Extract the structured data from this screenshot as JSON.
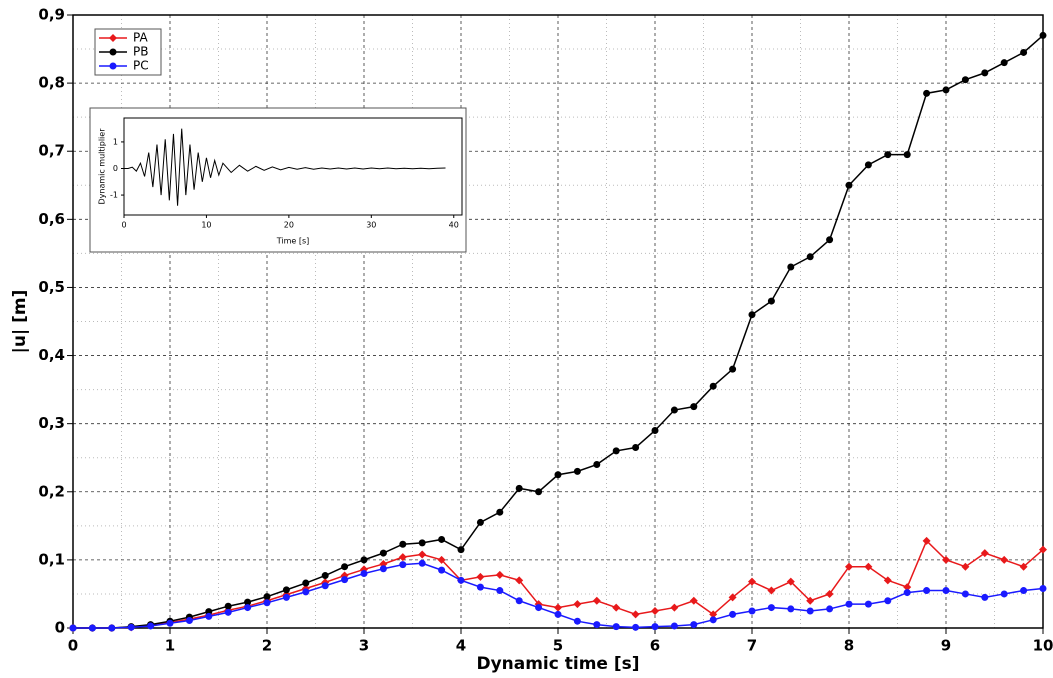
{
  "chart_data": [
    {
      "type": "line",
      "x_label": "Dynamic time [s]",
      "y_label": "|u| [m]",
      "xlim": [
        0,
        10
      ],
      "ylim": [
        0,
        0.9
      ],
      "xticks": [
        0,
        1,
        2,
        3,
        4,
        5,
        6,
        7,
        8,
        9,
        10
      ],
      "yticks": [
        0,
        {
          "value": 0.1,
          "label": "0,1"
        },
        {
          "value": 0.2,
          "label": "0,2"
        },
        {
          "value": 0.3,
          "label": "0,3"
        },
        {
          "value": 0.4,
          "label": "0,4"
        },
        {
          "value": 0.5,
          "label": "0,5"
        },
        {
          "value": 0.6,
          "label": "0,6"
        },
        {
          "value": 0.7,
          "label": "0,7"
        },
        {
          "value": 0.8,
          "label": "0,8"
        },
        {
          "value": 0.9,
          "label": "0,9"
        }
      ],
      "grid": true,
      "minor_grid": true,
      "markers": true,
      "legend": "upper left",
      "x": [
        0,
        0.2,
        0.4,
        0.6,
        0.8,
        1,
        1.2,
        1.4,
        1.6,
        1.8,
        2,
        2.2,
        2.4,
        2.6,
        2.8,
        3,
        3.2,
        3.4,
        3.6,
        3.8,
        4,
        4.2,
        4.4,
        4.6,
        4.8,
        5,
        5.2,
        5.4,
        5.6,
        5.8,
        6,
        6.2,
        6.4,
        6.6,
        6.8,
        7,
        7.2,
        7.4,
        7.6,
        7.8,
        8,
        8.2,
        8.4,
        8.6,
        8.8,
        9,
        9.2,
        9.4,
        9.6,
        9.8,
        10
      ],
      "series": [
        {
          "name": "PA",
          "color": "#e8191b",
          "marker": "diamond",
          "values": [
            0,
            0,
            0,
            0.001,
            0.004,
            0.008,
            0.013,
            0.019,
            0.026,
            0.032,
            0.04,
            0.049,
            0.058,
            0.067,
            0.077,
            0.086,
            0.094,
            0.104,
            0.108,
            0.1,
            0.07,
            0.075,
            0.078,
            0.07,
            0.035,
            0.03,
            0.035,
            0.04,
            0.03,
            0.02,
            0.025,
            0.03,
            0.04,
            0.02,
            0.045,
            0.068,
            0.055,
            0.068,
            0.04,
            0.05,
            0.09,
            0.09,
            0.07,
            0.06,
            0.128,
            0.1,
            0.09,
            0.11,
            0.1,
            0.09,
            0.115
          ]
        },
        {
          "name": "PB",
          "color": "#000000",
          "marker": "circle",
          "values": [
            0,
            0,
            0,
            0.002,
            0.005,
            0.01,
            0.016,
            0.024,
            0.032,
            0.038,
            0.046,
            0.056,
            0.066,
            0.077,
            0.09,
            0.1,
            0.11,
            0.123,
            0.125,
            0.13,
            0.115,
            0.155,
            0.17,
            0.205,
            0.2,
            0.225,
            0.23,
            0.24,
            0.26,
            0.265,
            0.29,
            0.32,
            0.325,
            0.355,
            0.38,
            0.46,
            0.48,
            0.53,
            0.545,
            0.57,
            0.65,
            0.68,
            0.695,
            0.695,
            0.785,
            0.79,
            0.805,
            0.815,
            0.83,
            0.845,
            0.87
          ]
        },
        {
          "name": "PC",
          "color": "#1a1aff",
          "marker": "circle",
          "values": [
            0,
            0,
            0,
            0.001,
            0.003,
            0.007,
            0.011,
            0.017,
            0.023,
            0.03,
            0.037,
            0.045,
            0.053,
            0.062,
            0.071,
            0.08,
            0.087,
            0.093,
            0.095,
            0.085,
            0.07,
            0.06,
            0.055,
            0.04,
            0.03,
            0.02,
            0.01,
            0.005,
            0.002,
            0.001,
            0.002,
            0.003,
            0.005,
            0.012,
            0.02,
            0.025,
            0.03,
            0.028,
            0.025,
            0.028,
            0.035,
            0.035,
            0.04,
            0.052,
            0.055,
            0.055,
            0.05,
            0.045,
            0.05,
            0.055,
            0.058
          ]
        }
      ]
    },
    {
      "type": "line",
      "x_label": "Time [s]",
      "y_label": "Dynamic multiplier",
      "xlim": [
        0,
        41
      ],
      "ylim": [
        -1.75,
        1.9
      ],
      "xticks": [
        0,
        10,
        20,
        30,
        40
      ],
      "yticks": [
        -1,
        0,
        1
      ],
      "grid": false,
      "minor_grid": false,
      "markers": false,
      "x": [
        0,
        0.5,
        1,
        1.5,
        2,
        2.5,
        3,
        3.5,
        4,
        4.5,
        5,
        5.5,
        6,
        6.5,
        7,
        7.5,
        8,
        8.5,
        9,
        9.5,
        10,
        10.5,
        11,
        11.5,
        12,
        13,
        14,
        15,
        16,
        17,
        18,
        19,
        20,
        21,
        22,
        23,
        24,
        25,
        26,
        27,
        28,
        29,
        30,
        31,
        32,
        33,
        34,
        35,
        36,
        37,
        38,
        39
      ],
      "series": [
        {
          "color": "#000000",
          "values": [
            0,
            0,
            0.05,
            -0.1,
            0.2,
            -0.3,
            0.6,
            -0.7,
            0.9,
            -1.0,
            1.1,
            -1.2,
            1.3,
            -1.4,
            1.5,
            -1.0,
            0.9,
            -0.8,
            0.6,
            -0.5,
            0.4,
            -0.35,
            0.3,
            -0.25,
            0.2,
            -0.15,
            0.12,
            -0.1,
            0.08,
            -0.07,
            0.06,
            -0.05,
            0.04,
            -0.03,
            0.03,
            -0.03,
            0.02,
            -0.02,
            0.02,
            -0.02,
            0.02,
            -0.02,
            0.02,
            -0.01,
            0.02,
            -0.01,
            0.01,
            -0.01,
            0.01,
            -0.01,
            0.01,
            0.02
          ]
        }
      ]
    }
  ]
}
